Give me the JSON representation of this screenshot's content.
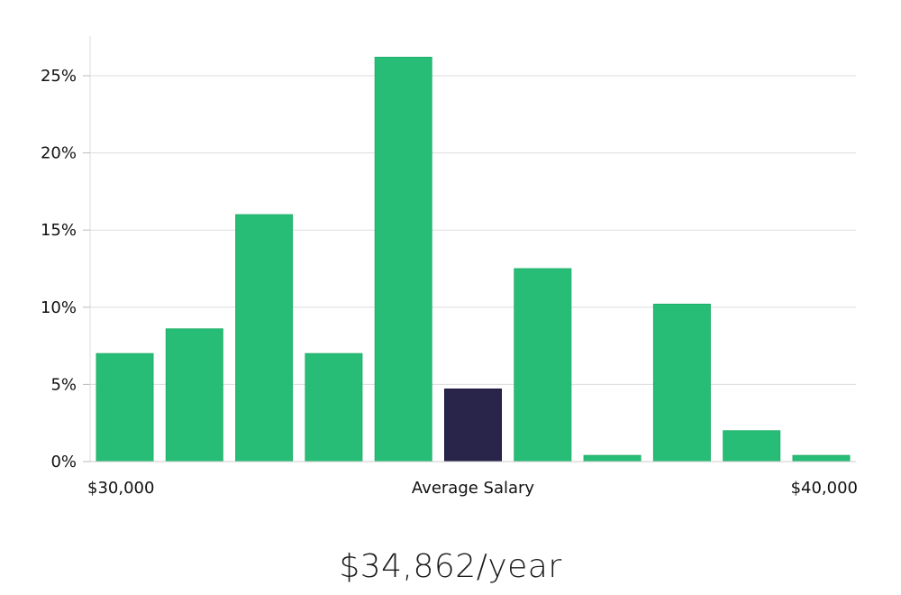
{
  "chart_data": {
    "type": "bar",
    "values": [
      7.0,
      8.6,
      16.0,
      7.0,
      26.2,
      4.7,
      12.5,
      0.4,
      10.2,
      2.0,
      0.4
    ],
    "highlight_index": 5,
    "ylim": [
      0,
      27.5
    ],
    "yticks": [
      0,
      5,
      10,
      15,
      20,
      25
    ],
    "ytick_suffix": "%",
    "grid": true,
    "x_start_label": "$30,000",
    "x_center_label": "Average Salary",
    "x_end_label": "$40,000",
    "bar_color": "#28bd76",
    "highlight_color": "#29244a",
    "grid_color": "#dddddd"
  },
  "salary_text": "$34,862/year"
}
